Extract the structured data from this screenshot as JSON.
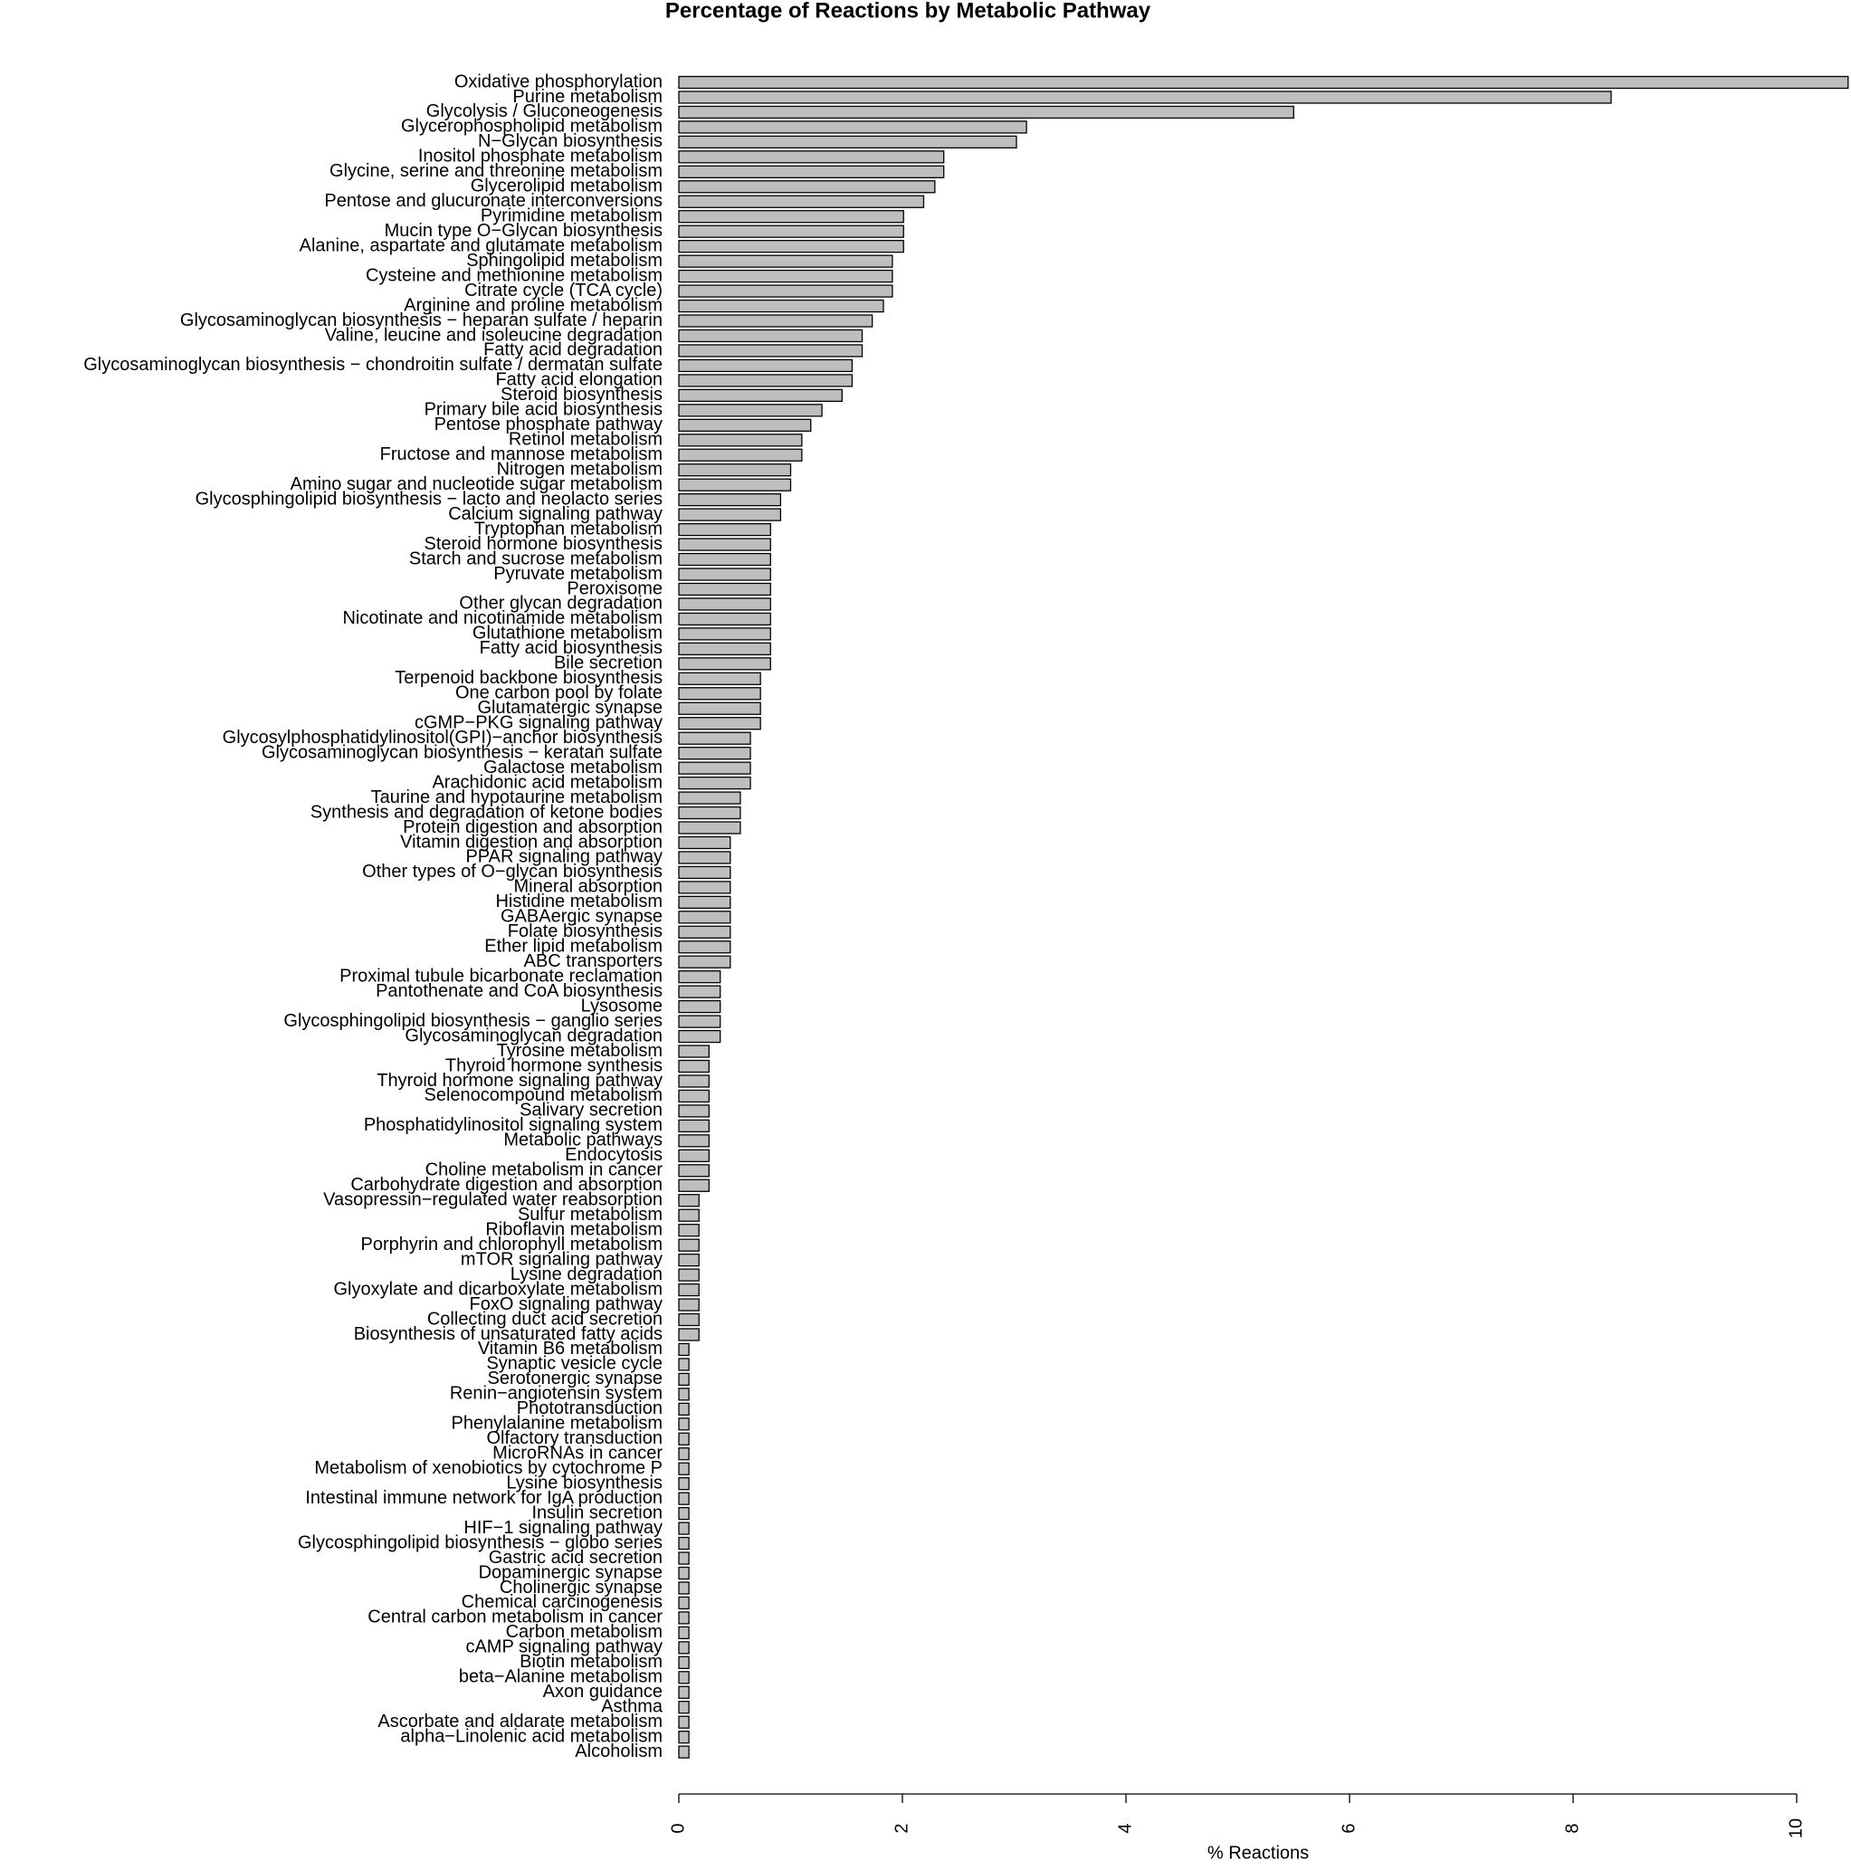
{
  "chart_data": {
    "type": "bar",
    "orientation": "horizontal",
    "title": "Percentage of Reactions by Metabolic Pathway",
    "x_label": "% Reactions",
    "color": "#bebebe",
    "xlim": [
      0,
      10
    ],
    "xticks": [
      0,
      2,
      4,
      6,
      8,
      10
    ],
    "categories": [
      "Oxidative phosphorylation",
      "Purine metabolism",
      "Glycolysis / Gluconeogenesis",
      "Glycerophospholipid metabolism",
      "N−Glycan biosynthesis",
      "Inositol phosphate metabolism",
      "Glycine, serine and threonine metabolism",
      "Glycerolipid metabolism",
      "Pentose and glucuronate interconversions",
      "Pyrimidine metabolism",
      "Mucin type O−Glycan biosynthesis",
      "Alanine, aspartate and glutamate metabolism",
      "Sphingolipid metabolism",
      "Cysteine and methionine metabolism",
      "Citrate cycle (TCA cycle)",
      "Arginine and proline metabolism",
      "Glycosaminoglycan biosynthesis − heparan sulfate / heparin",
      "Valine, leucine and isoleucine degradation",
      "Fatty acid degradation",
      "Glycosaminoglycan biosynthesis − chondroitin sulfate / dermatan sulfate",
      "Fatty acid elongation",
      "Steroid biosynthesis",
      "Primary bile acid biosynthesis",
      "Pentose phosphate pathway",
      "Retinol metabolism",
      "Fructose and mannose metabolism",
      "Nitrogen metabolism",
      "Amino sugar and nucleotide sugar metabolism",
      "Glycosphingolipid biosynthesis − lacto and neolacto series",
      "Calcium signaling pathway",
      "Tryptophan metabolism",
      "Steroid hormone biosynthesis",
      "Starch and sucrose metabolism",
      "Pyruvate metabolism",
      "Peroxisome",
      "Other glycan degradation",
      "Nicotinate and nicotinamide metabolism",
      "Glutathione metabolism",
      "Fatty acid biosynthesis",
      "Bile secretion",
      "Terpenoid backbone biosynthesis",
      "One carbon pool by folate",
      "Glutamatergic synapse",
      "cGMP−PKG signaling pathway",
      "Glycosylphosphatidylinositol(GPI)−anchor biosynthesis",
      "Glycosaminoglycan biosynthesis − keratan sulfate",
      "Galactose metabolism",
      "Arachidonic acid metabolism",
      "Taurine and hypotaurine metabolism",
      "Synthesis and degradation of ketone bodies",
      "Protein digestion and absorption",
      "Vitamin digestion and absorption",
      "PPAR signaling pathway",
      "Other types of O−glycan biosynthesis",
      "Mineral absorption",
      "Histidine metabolism",
      "GABAergic synapse",
      "Folate biosynthesis",
      "Ether lipid metabolism",
      "ABC transporters",
      "Proximal tubule bicarbonate reclamation",
      "Pantothenate and CoA biosynthesis",
      "Lysosome",
      "Glycosphingolipid biosynthesis − ganglio series",
      "Glycosaminoglycan degradation",
      "Tyrosine metabolism",
      "Thyroid hormone synthesis",
      "Thyroid hormone signaling pathway",
      "Selenocompound metabolism",
      "Salivary secretion",
      "Phosphatidylinositol signaling system",
      "Metabolic pathways",
      "Endocytosis",
      "Choline metabolism in cancer",
      "Carbohydrate digestion and absorption",
      "Vasopressin−regulated water reabsorption",
      "Sulfur metabolism",
      "Riboflavin metabolism",
      "Porphyrin and chlorophyll metabolism",
      "mTOR signaling pathway",
      "Lysine degradation",
      "Glyoxylate and dicarboxylate metabolism",
      "FoxO signaling pathway",
      "Collecting duct acid secretion",
      "Biosynthesis of unsaturated fatty acids",
      "Vitamin B6 metabolism",
      "Synaptic vesicle cycle",
      "Serotonergic synapse",
      "Renin−angiotensin system",
      "Phototransduction",
      "Phenylalanine metabolism",
      "Olfactory transduction",
      "MicroRNAs in cancer",
      "Metabolism of xenobiotics by cytochrome P",
      "Lysine biosynthesis",
      "Intestinal immune network for IgA production",
      "Insulin secretion",
      "HIF−1 signaling pathway",
      "Glycosphingolipid biosynthesis − globo series",
      "Gastric acid secretion",
      "Dopaminergic synapse",
      "Cholinergic synapse",
      "Chemical carcinogenesis",
      "Central carbon metabolism in cancer",
      "Carbon metabolism",
      "cAMP signaling pathway",
      "Biotin metabolism",
      "beta−Alanine metabolism",
      "Axon guidance",
      "Asthma",
      "Ascorbate and aldarate metabolism",
      "alpha−Linolenic acid metabolism",
      "Alcoholism"
    ],
    "values": [
      10.46,
      8.34,
      5.5,
      3.11,
      3.02,
      2.37,
      2.37,
      2.29,
      2.19,
      2.01,
      2.01,
      2.01,
      1.91,
      1.91,
      1.91,
      1.83,
      1.73,
      1.64,
      1.64,
      1.55,
      1.55,
      1.46,
      1.28,
      1.18,
      1.1,
      1.1,
      1.0,
      1.0,
      0.91,
      0.91,
      0.82,
      0.82,
      0.82,
      0.82,
      0.82,
      0.82,
      0.82,
      0.82,
      0.82,
      0.82,
      0.73,
      0.73,
      0.73,
      0.73,
      0.64,
      0.64,
      0.64,
      0.64,
      0.55,
      0.55,
      0.55,
      0.46,
      0.46,
      0.46,
      0.46,
      0.46,
      0.46,
      0.46,
      0.46,
      0.46,
      0.37,
      0.37,
      0.37,
      0.37,
      0.37,
      0.27,
      0.27,
      0.27,
      0.27,
      0.27,
      0.27,
      0.27,
      0.27,
      0.27,
      0.27,
      0.18,
      0.18,
      0.18,
      0.18,
      0.18,
      0.18,
      0.18,
      0.18,
      0.18,
      0.18,
      0.09,
      0.09,
      0.09,
      0.09,
      0.09,
      0.09,
      0.09,
      0.09,
      0.09,
      0.09,
      0.09,
      0.09,
      0.09,
      0.09,
      0.09,
      0.09,
      0.09,
      0.09,
      0.09,
      0.09,
      0.09,
      0.09,
      0.09,
      0.09,
      0.09,
      0.09,
      0.09,
      0.09
    ]
  }
}
